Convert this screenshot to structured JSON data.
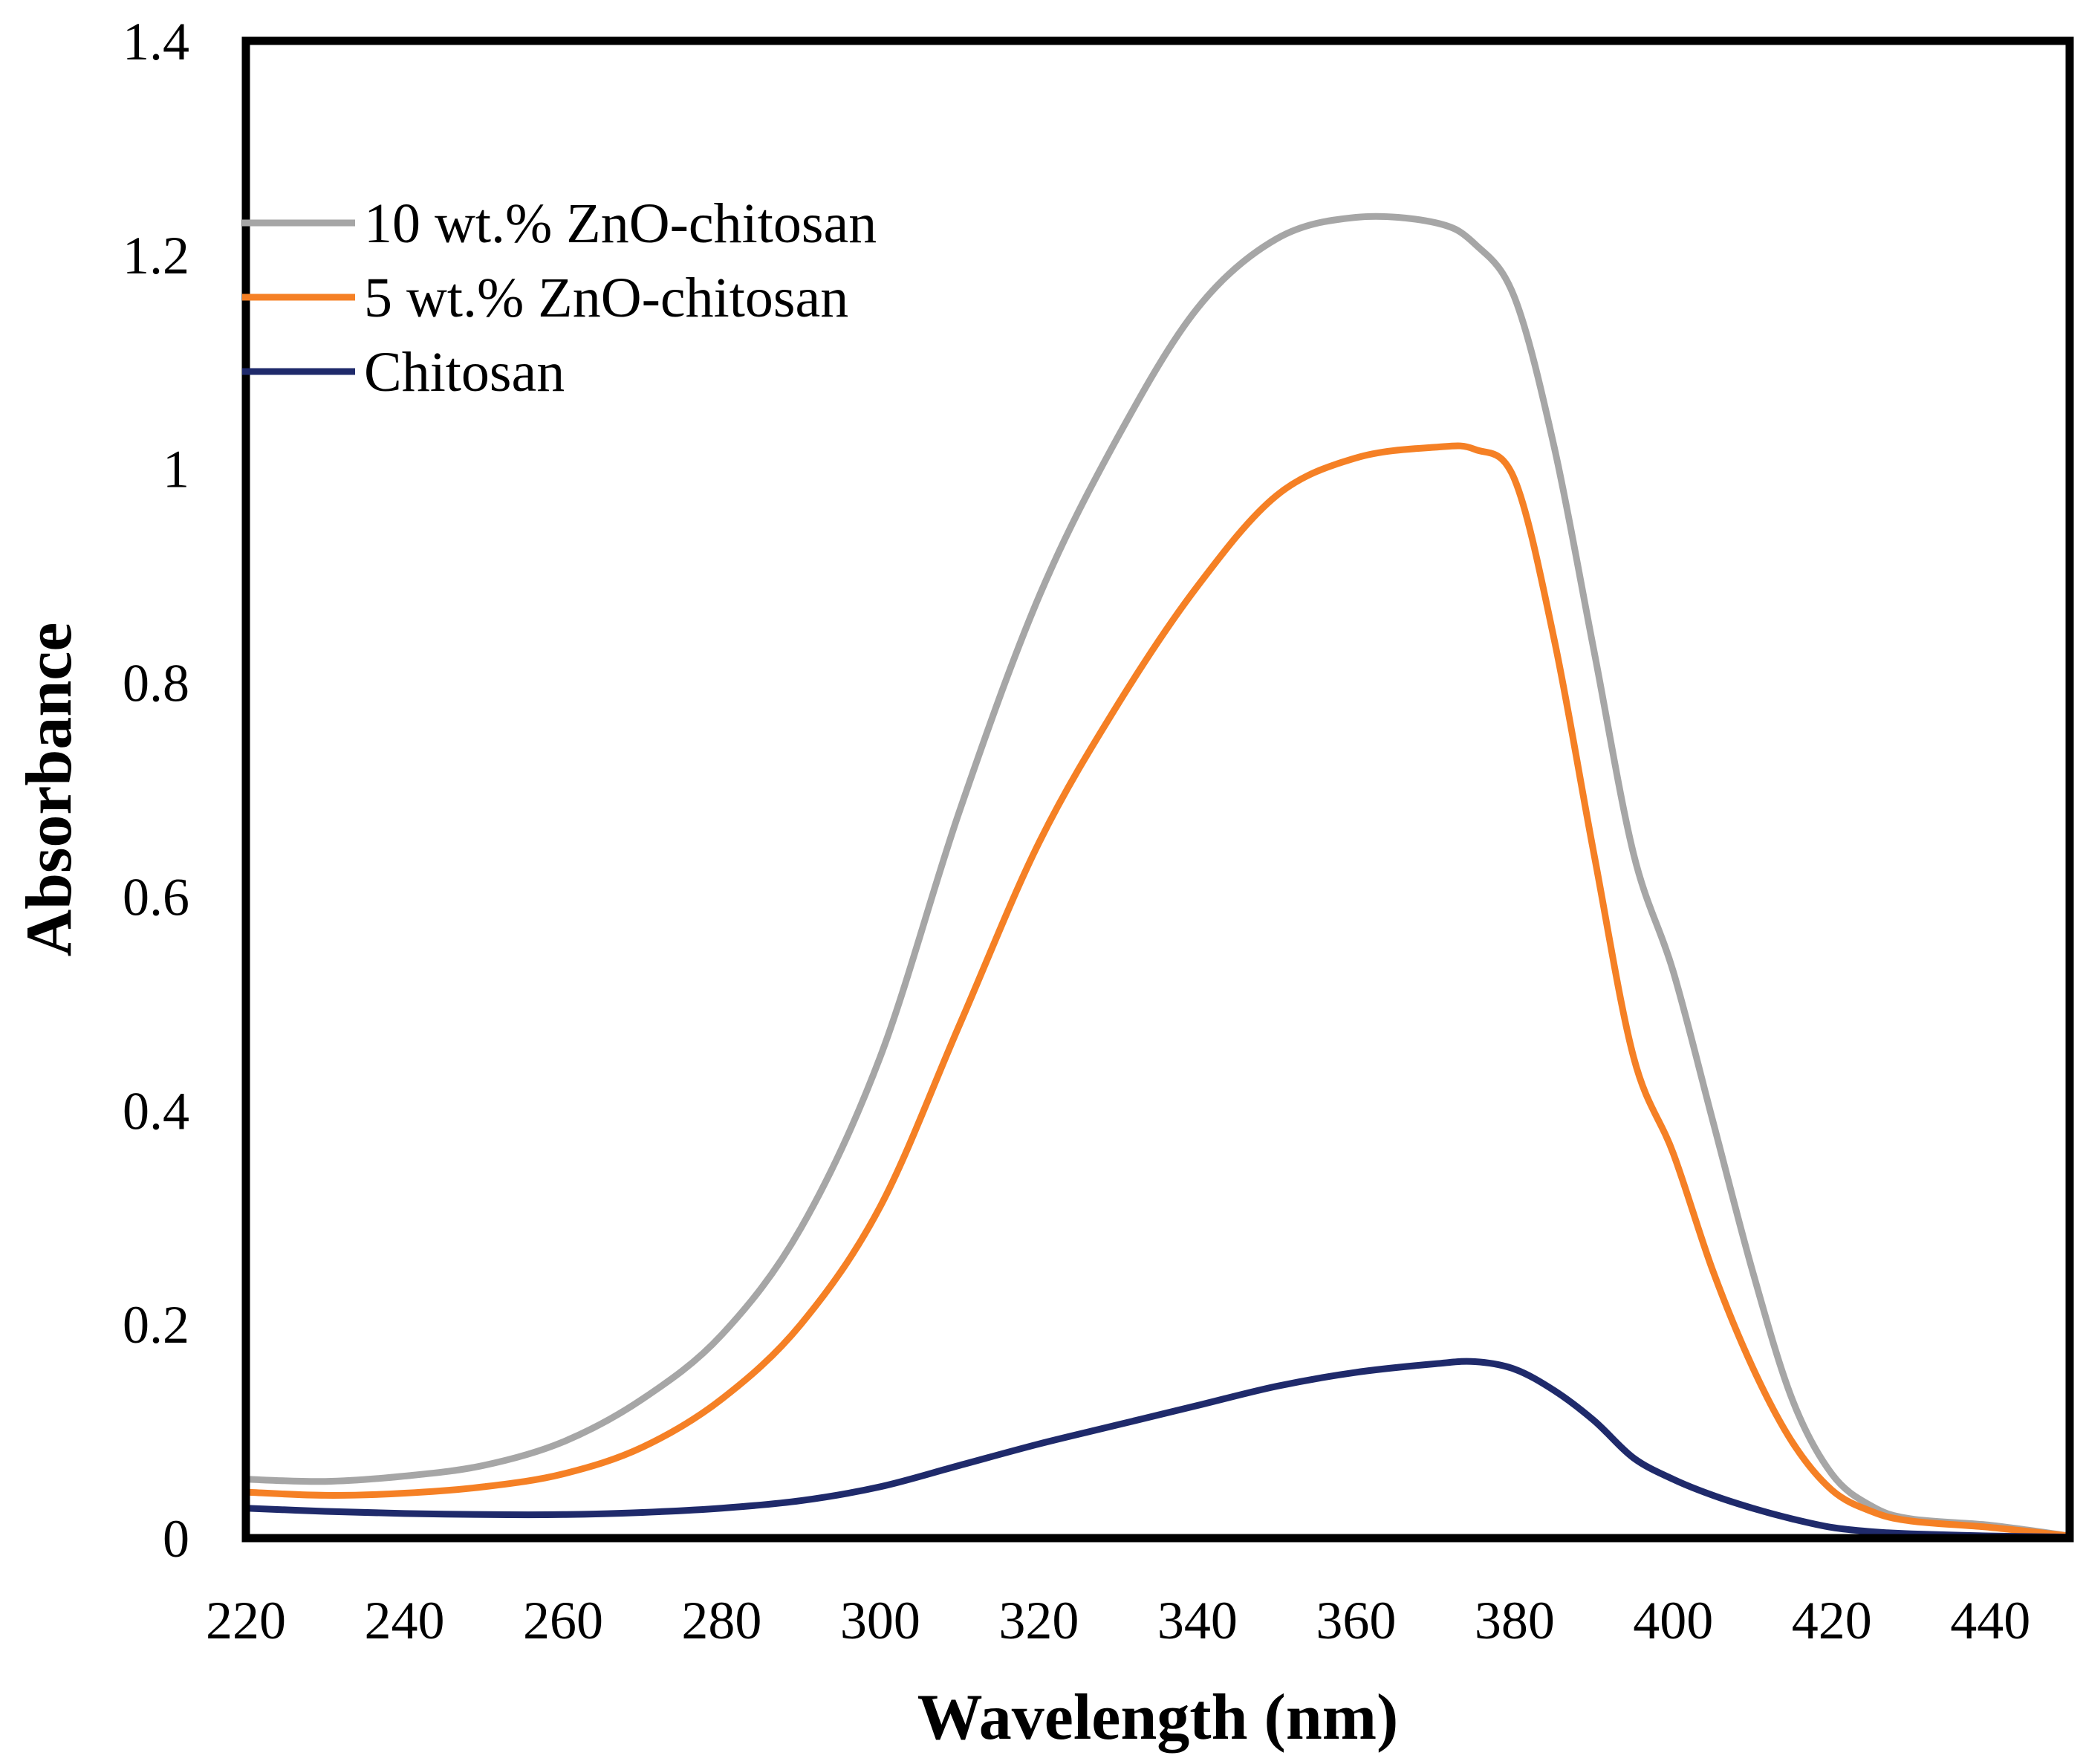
{
  "chart_data": {
    "type": "line",
    "title": "",
    "xlabel": "Wavelength (nm)",
    "ylabel": "Absorbance",
    "xlim": [
      220,
      450
    ],
    "ylim": [
      0,
      1.4
    ],
    "xticks": [
      220,
      240,
      260,
      280,
      300,
      320,
      340,
      360,
      380,
      400,
      420,
      440
    ],
    "yticks": [
      0,
      0.2,
      0.4,
      0.6,
      0.8,
      1,
      1.2,
      1.4
    ],
    "ytick_labels": [
      "0",
      "0.2",
      "0.4",
      "0.6",
      "0.8",
      "1",
      "1.2",
      "1.4"
    ],
    "grid": false,
    "legend_position": "top-left",
    "x": [
      220,
      230,
      240,
      250,
      260,
      270,
      280,
      290,
      300,
      310,
      320,
      330,
      340,
      350,
      360,
      370,
      375,
      380,
      385,
      390,
      395,
      400,
      405,
      410,
      415,
      420,
      425,
      430,
      440,
      450
    ],
    "series": [
      {
        "name": "10 wt.% ZnO-chitosan",
        "color": "#a6a6a6",
        "values": [
          0.055,
          0.053,
          0.058,
          0.068,
          0.09,
          0.13,
          0.19,
          0.29,
          0.45,
          0.68,
          0.88,
          1.03,
          1.15,
          1.215,
          1.235,
          1.23,
          1.21,
          1.16,
          1.02,
          0.83,
          0.64,
          0.53,
          0.39,
          0.25,
          0.13,
          0.06,
          0.03,
          0.018,
          0.012,
          0.002
        ]
      },
      {
        "name": "5 wt.% ZnO-chitosan",
        "color": "#f58025",
        "values": [
          0.043,
          0.04,
          0.042,
          0.048,
          0.06,
          0.085,
          0.13,
          0.2,
          0.31,
          0.48,
          0.65,
          0.78,
          0.89,
          0.975,
          1.01,
          1.02,
          1.018,
          0.99,
          0.84,
          0.64,
          0.45,
          0.36,
          0.25,
          0.16,
          0.09,
          0.045,
          0.025,
          0.016,
          0.01,
          0.002
        ]
      },
      {
        "name": "Chitosan",
        "color": "#1f2a6b",
        "values": [
          0.028,
          0.025,
          0.023,
          0.022,
          0.022,
          0.024,
          0.028,
          0.035,
          0.048,
          0.068,
          0.088,
          0.106,
          0.124,
          0.142,
          0.155,
          0.163,
          0.165,
          0.158,
          0.138,
          0.11,
          0.075,
          0.055,
          0.04,
          0.028,
          0.018,
          0.01,
          0.006,
          0.004,
          0.002,
          0.001
        ]
      }
    ]
  }
}
